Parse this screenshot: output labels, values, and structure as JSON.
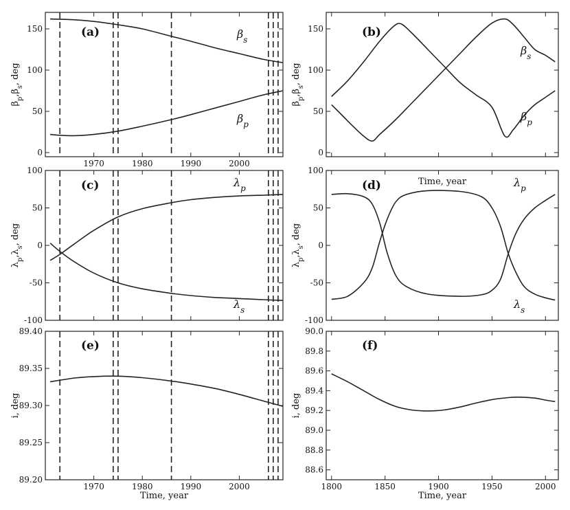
{
  "chart_data": [
    {
      "id": "a",
      "type": "line",
      "panel_label": "(a)",
      "xlim": [
        1960,
        2009
      ],
      "xticks": [
        1970,
        1980,
        1990,
        2000
      ],
      "xlabel": "",
      "ylim": [
        -5,
        170
      ],
      "yticks": [
        "0",
        "50",
        "100",
        "150"
      ],
      "ylabel": "β_p,β_s, deg",
      "vlines": [
        1963,
        1974,
        1975,
        1986,
        2006,
        2007,
        2008
      ],
      "series": [
        {
          "name": "β_s",
          "x": [
            1961,
            1966,
            1970,
            1975,
            1980,
            1986,
            1990,
            1995,
            2000,
            2005,
            2009
          ],
          "y": [
            162,
            161,
            159,
            155,
            150,
            141,
            135,
            127,
            120,
            113,
            109
          ]
        },
        {
          "name": "β_p",
          "x": [
            1961,
            1963,
            1966,
            1970,
            1975,
            1980,
            1986,
            1990,
            1995,
            2000,
            2005,
            2009
          ],
          "y": [
            22,
            21,
            20.5,
            22,
            26,
            32,
            40,
            46,
            54,
            62,
            70,
            75
          ]
        }
      ]
    },
    {
      "id": "b",
      "type": "line",
      "panel_label": "(b)",
      "xlim": [
        1795,
        2012
      ],
      "xticks": [],
      "xlabel": "",
      "ylim": [
        -5,
        170
      ],
      "yticks": [
        "0",
        "50",
        "100",
        "150"
      ],
      "ylabel": "β_p,β_s, deg",
      "vlines": [],
      "series": [
        {
          "name": "β_s",
          "x": [
            1800,
            1815,
            1830,
            1845,
            1858,
            1865,
            1875,
            1890,
            1905,
            1920,
            1935,
            1950,
            1962,
            1970,
            1980,
            1990,
            2000,
            2009
          ],
          "y": [
            68,
            87,
            110,
            135,
            153,
            156,
            145,
            125,
            105,
            85,
            70,
            55,
            20,
            28,
            45,
            58,
            67,
            75
          ]
        },
        {
          "name": "β_p",
          "x": [
            1800,
            1810,
            1820,
            1830,
            1838,
            1845,
            1860,
            1875,
            1890,
            1905,
            1920,
            1935,
            1950,
            1962,
            1970,
            1980,
            1990,
            2000,
            2009
          ],
          "y": [
            58,
            45,
            32,
            20,
            14,
            22,
            40,
            60,
            80,
            100,
            120,
            140,
            157,
            162,
            155,
            140,
            125,
            118,
            110
          ]
        }
      ]
    },
    {
      "id": "c",
      "type": "line",
      "panel_label": "(c)",
      "xlim": [
        1960,
        2009
      ],
      "xticks": [],
      "xlabel": "",
      "ylim": [
        -100,
        100
      ],
      "yticks": [
        "-100",
        "-50",
        "0",
        "50",
        "100"
      ],
      "ylabel": "λ_p,λ_s, deg",
      "vlines": [
        1963,
        1974,
        1975,
        1986,
        2006,
        2007,
        2008
      ],
      "series": [
        {
          "name": "λ_p",
          "x": [
            1961,
            1963,
            1966,
            1970,
            1975,
            1980,
            1986,
            1990,
            1995,
            2000,
            2005,
            2009
          ],
          "y": [
            -20,
            -12,
            2,
            20,
            38,
            49,
            57,
            61,
            64,
            66,
            67,
            68
          ]
        },
        {
          "name": "λ_s",
          "x": [
            1961,
            1963,
            1966,
            1970,
            1975,
            1980,
            1986,
            1990,
            1995,
            2000,
            2005,
            2009
          ],
          "y": [
            3,
            -8,
            -22,
            -37,
            -50,
            -58,
            -64,
            -67,
            -69.5,
            -71,
            -72.5,
            -73.5
          ]
        }
      ]
    },
    {
      "id": "d",
      "type": "line",
      "panel_label": "(d)",
      "title": "Time, year",
      "xlim": [
        1795,
        2012
      ],
      "xticks": [],
      "xlabel": "",
      "ylim": [
        -100,
        100
      ],
      "yticks": [
        "-100",
        "-50",
        "0",
        "50",
        "100"
      ],
      "ylabel": "λ_p,λ_s, deg",
      "vlines": [],
      "series": [
        {
          "name": "λ_p",
          "x": [
            1800,
            1815,
            1830,
            1838,
            1845,
            1852,
            1860,
            1870,
            1890,
            1920,
            1940,
            1950,
            1958,
            1965,
            1972,
            1980,
            1990,
            2000,
            2009
          ],
          "y": [
            68,
            69,
            65,
            55,
            30,
            -10,
            -40,
            -55,
            -65,
            -68,
            -66,
            -60,
            -45,
            -12,
            15,
            35,
            50,
            60,
            68
          ]
        },
        {
          "name": "λ_s",
          "x": [
            1800,
            1815,
            1830,
            1838,
            1845,
            1852,
            1860,
            1870,
            1890,
            1920,
            1940,
            1950,
            1958,
            1965,
            1972,
            1980,
            1990,
            2000,
            2009
          ],
          "y": [
            -72,
            -68,
            -50,
            -30,
            5,
            35,
            58,
            68,
            73,
            72,
            65,
            50,
            25,
            -10,
            -35,
            -55,
            -65,
            -70,
            -73
          ]
        }
      ]
    },
    {
      "id": "e",
      "type": "line",
      "panel_label": "(e)",
      "xlim": [
        1960,
        2009
      ],
      "xticks": [
        "1970",
        "1980",
        "1990",
        "2000"
      ],
      "xlabel": "Time, year",
      "ylim": [
        89.2,
        89.4
      ],
      "yticks": [
        "89.20",
        "89.25",
        "89.30",
        "89.35",
        "89.40"
      ],
      "ylabel": "i, deg",
      "vlines": [
        1963,
        1974,
        1975,
        1986,
        2006,
        2007,
        2008
      ],
      "series": [
        {
          "name": "",
          "x": [
            1961,
            1966,
            1970,
            1975,
            1980,
            1986,
            1990,
            1995,
            2000,
            2005,
            2009
          ],
          "y": [
            89.332,
            89.337,
            89.339,
            89.3395,
            89.3375,
            89.333,
            89.329,
            89.323,
            89.315,
            89.306,
            89.299
          ]
        }
      ]
    },
    {
      "id": "f",
      "type": "line",
      "panel_label": "(f)",
      "xlim": [
        1795,
        2012
      ],
      "xticks": [
        "1800",
        "1850",
        "1900",
        "1950",
        "2000"
      ],
      "xlabel": "Time, year",
      "ylim": [
        88.5,
        90.0
      ],
      "yticks": [
        "88.6",
        "88.8",
        "89.0",
        "89.2",
        "89.4",
        "89.6",
        "89.8",
        "90.0"
      ],
      "ylabel": "i, deg",
      "vlines": [],
      "series": [
        {
          "name": "",
          "x": [
            1800,
            1815,
            1830,
            1845,
            1860,
            1875,
            1890,
            1905,
            1920,
            1935,
            1950,
            1965,
            1975,
            1990,
            2000,
            2009
          ],
          "y": [
            89.57,
            89.49,
            89.4,
            89.31,
            89.24,
            89.205,
            89.195,
            89.205,
            89.235,
            89.275,
            89.31,
            89.33,
            89.335,
            89.325,
            89.305,
            89.29
          ]
        }
      ]
    }
  ]
}
